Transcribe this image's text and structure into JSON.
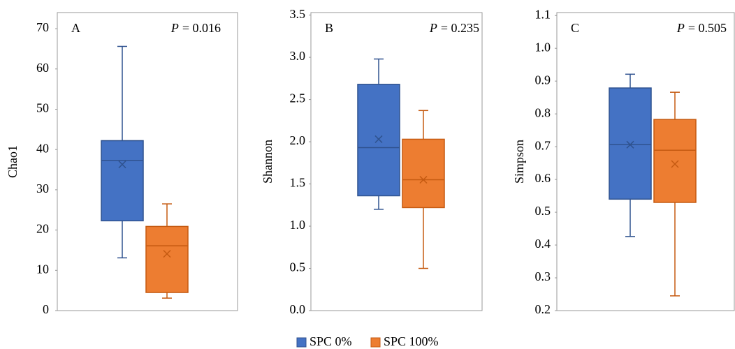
{
  "legend": {
    "items": [
      {
        "name": "SPC 0%",
        "color": "#4472c4",
        "edge": "#2f528f"
      },
      {
        "name": "SPC 100%",
        "color": "#ed7d31",
        "edge": "#c55a11"
      }
    ]
  },
  "chart_data": [
    {
      "type": "box",
      "panel": "A",
      "annotation_italic": "P",
      "annotation": "= 0.016",
      "ylabel": "Chao1",
      "ylim": [
        0,
        74
      ],
      "yticks": [
        0,
        10,
        20,
        30,
        40,
        50,
        60,
        70
      ],
      "series": [
        {
          "min": 13.1,
          "q1": 22.3,
          "median": 37.3,
          "q3": 42.2,
          "max": 65.6,
          "mean": 36.3
        },
        {
          "min": 3.1,
          "q1": 4.5,
          "median": 16.1,
          "q3": 20.9,
          "max": 26.5,
          "mean": 14.1
        }
      ]
    },
    {
      "type": "box",
      "panel": "B",
      "annotation_italic": "P",
      "annotation": "= 0.235",
      "ylabel": "Shannon",
      "ylim": [
        0,
        3.53
      ],
      "yticks": [
        {
          "value": 0,
          "label": "0.0"
        },
        0.5,
        {
          "value": 1,
          "label": "1.0"
        },
        1.5,
        {
          "value": 2,
          "label": "2.0"
        },
        2.5,
        {
          "value": 3,
          "label": "3.0"
        },
        3.5
      ],
      "series": [
        {
          "min": 1.2,
          "q1": 1.36,
          "median": 1.93,
          "q3": 2.68,
          "max": 2.98,
          "mean": 2.03
        },
        {
          "min": 0.5,
          "q1": 1.22,
          "median": 1.55,
          "q3": 2.03,
          "max": 2.37,
          "mean": 1.55
        }
      ]
    },
    {
      "type": "box",
      "panel": "C",
      "annotation_italic": "P",
      "annotation": "= 0.505",
      "ylabel": "Simpson",
      "ylim": [
        0.2,
        1.109
      ],
      "yticks": [
        0.2,
        0.3,
        0.4,
        0.5,
        0.6,
        0.7,
        0.8,
        0.9,
        {
          "value": 1,
          "label": "1.0"
        },
        1.1
      ],
      "series": [
        {
          "min": 0.426,
          "q1": 0.54,
          "median": 0.706,
          "q3": 0.879,
          "max": 0.921,
          "mean": 0.706
        },
        {
          "min": 0.245,
          "q1": 0.53,
          "median": 0.689,
          "q3": 0.783,
          "max": 0.866,
          "mean": 0.647
        }
      ]
    }
  ]
}
